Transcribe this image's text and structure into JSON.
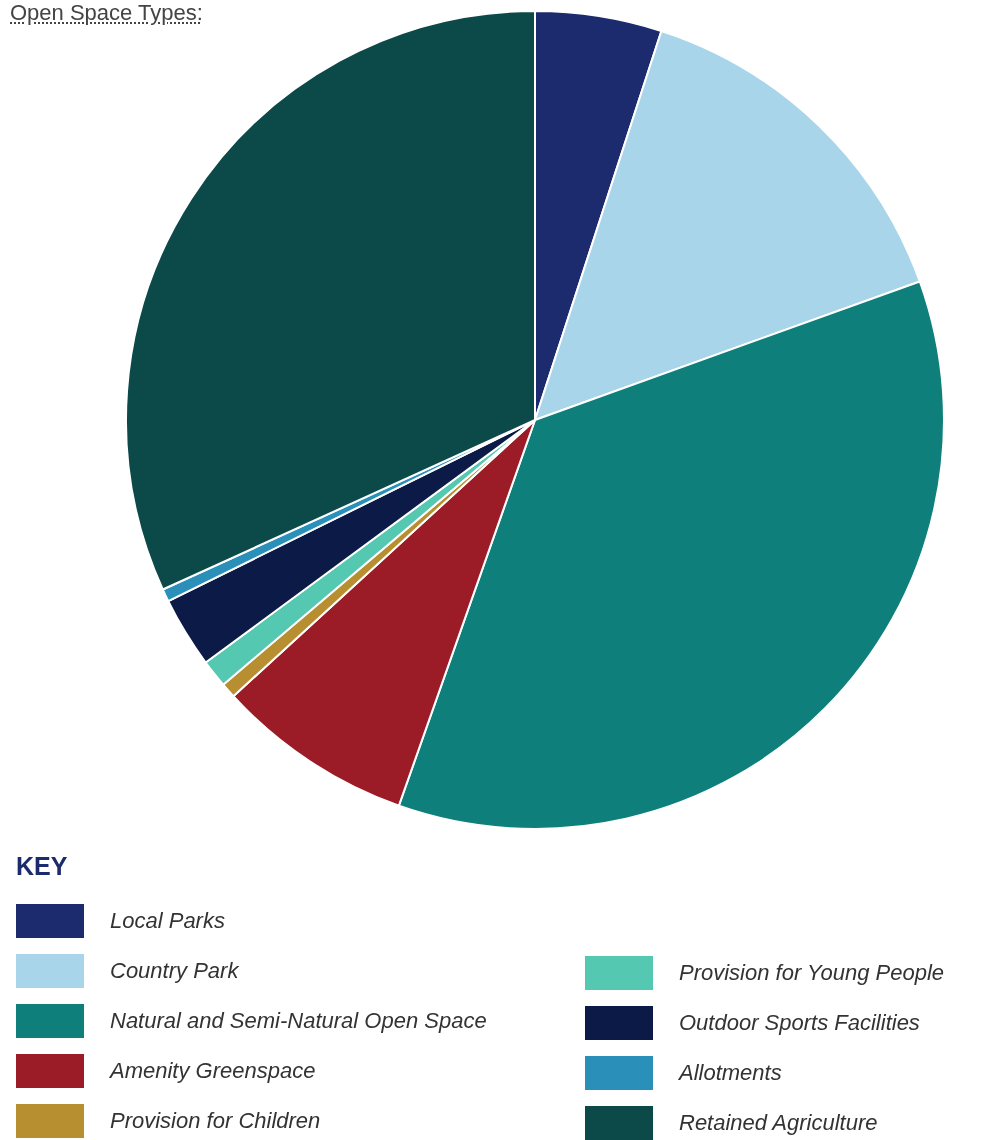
{
  "chart_data": {
    "type": "pie",
    "title": "Open Space Types:",
    "legend_title": "KEY",
    "legend": "bottom",
    "categories": [
      "Local Parks",
      "Country Park",
      "Natural and Semi-Natural Open Space",
      "Amenity Greenspace",
      "Provision for Children",
      "Provision for Young People",
      "Outdoor Sports Facilities",
      "Allotments",
      "Retained Agriculture"
    ],
    "values": [
      5.0,
      14.5,
      35.9,
      7.8,
      0.6,
      1.1,
      2.8,
      0.5,
      31.8
    ],
    "colors": [
      "#1c2a6e",
      "#a9d5eb",
      "#0e7f7a",
      "#9b1c26",
      "#b88f30",
      "#55c8b2",
      "#0b1a46",
      "#2a90b9",
      "#0b4a48"
    ]
  }
}
